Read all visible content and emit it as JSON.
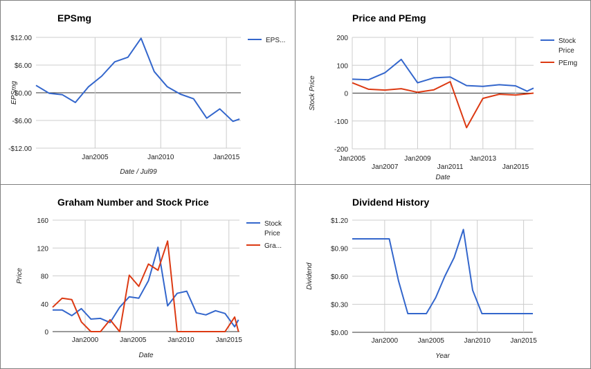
{
  "chart_data": [
    {
      "type": "line",
      "title": "EPSmg",
      "xlabel": "Date / Jul99",
      "ylabel": "EPSmg",
      "ylim": [
        -12,
        12
      ],
      "yticks": [
        12,
        6,
        0,
        -6,
        -12
      ],
      "ytick_labels": [
        "$12.00",
        "$6.00",
        "$0.00",
        "-$6.00",
        "-$12.00"
      ],
      "xlim": [
        2000.5,
        2016.1
      ],
      "xticks": [
        2005,
        2010,
        2015
      ],
      "xtick_labels": [
        "Jan2005",
        "Jan2010",
        "Jan2015"
      ],
      "grid": true,
      "legend_position": "right",
      "series": [
        {
          "name": "EPS...",
          "color": "#3366cc",
          "x": [
            2000.5,
            2001.5,
            2002.5,
            2003.5,
            2004.5,
            2005.5,
            2006.5,
            2007.5,
            2008.5,
            2009.5,
            2010.5,
            2011.5,
            2012.5,
            2013.5,
            2014.5,
            2015.5,
            2016.0
          ],
          "y": [
            1.6,
            -0.1,
            -0.4,
            -2.1,
            1.3,
            3.6,
            6.7,
            7.7,
            11.8,
            4.6,
            1.3,
            -0.3,
            -1.3,
            -5.5,
            -3.5,
            -6.2,
            -5.7
          ]
        }
      ]
    },
    {
      "type": "line",
      "title": "Price and PEmg",
      "xlabel": "Date",
      "ylabel": "Stock Price",
      "ylim": [
        -200,
        200
      ],
      "yticks": [
        200,
        100,
        0,
        -100,
        -200
      ],
      "ytick_labels": [
        "200",
        "100",
        "0",
        "-100",
        "-200"
      ],
      "xlim": [
        2005,
        2016.1
      ],
      "xticks": [
        2005,
        2007,
        2009,
        2011,
        2013,
        2015
      ],
      "xtick_labels": [
        "Jan2005",
        "Jan2007",
        "Jan2009",
        "Jan2011",
        "Jan2013",
        "Jan2015"
      ],
      "grid": true,
      "legend_position": "right",
      "series": [
        {
          "name": "Stock Price",
          "color": "#3366cc",
          "x": [
            2005.0,
            2006.0,
            2007.0,
            2008.0,
            2009.0,
            2010.0,
            2011.0,
            2012.0,
            2013.0,
            2014.0,
            2015.0,
            2015.7,
            2016.1
          ],
          "y": [
            50,
            48,
            73,
            121,
            37,
            55,
            58,
            27,
            24,
            30,
            26,
            7,
            18
          ]
        },
        {
          "name": "PEmg",
          "color": "#dc3912",
          "x": [
            2005.0,
            2006.0,
            2007.0,
            2008.0,
            2009.0,
            2010.0,
            2011.0,
            2012.0,
            2013.0,
            2014.0,
            2015.0,
            2016.1
          ],
          "y": [
            37,
            14,
            11,
            16,
            3,
            12,
            41,
            -124,
            -19,
            -4,
            -7,
            0
          ]
        }
      ]
    },
    {
      "type": "line",
      "title": "Graham Number and Stock Price",
      "xlabel": "Date",
      "ylabel": "Price",
      "ylim": [
        0,
        160
      ],
      "yticks": [
        160,
        120,
        80,
        40,
        0
      ],
      "ytick_labels": [
        "160",
        "120",
        "80",
        "40",
        "0"
      ],
      "xlim": [
        1996.6,
        2016.1
      ],
      "xticks": [
        2000,
        2005,
        2010,
        2015
      ],
      "xtick_labels": [
        "Jan2000",
        "Jan2005",
        "Jan2010",
        "Jan2015"
      ],
      "grid": true,
      "legend_position": "right",
      "series": [
        {
          "name": "Stock Price",
          "color": "#3366cc",
          "x": [
            1996.6,
            1997.6,
            1998.6,
            1999.6,
            2000.6,
            2001.6,
            2002.6,
            2003.6,
            2004.6,
            2005.6,
            2006.6,
            2007.6,
            2008.6,
            2009.6,
            2010.6,
            2011.6,
            2012.6,
            2013.6,
            2014.6,
            2015.6,
            2016.0
          ],
          "y": [
            31,
            31,
            23,
            33,
            18,
            19,
            13,
            35,
            50,
            48,
            73,
            121,
            37,
            55,
            58,
            27,
            24,
            30,
            26,
            7,
            17
          ]
        },
        {
          "name": "Gra...",
          "color": "#dc3912",
          "x": [
            1996.6,
            1997.6,
            1998.6,
            1999.6,
            2000.6,
            2001.6,
            2002.6,
            2003.6,
            2004.6,
            2005.6,
            2006.6,
            2007.6,
            2008.6,
            2009.6,
            2010.6,
            2011.6,
            2012.6,
            2013.6,
            2014.6,
            2015.6,
            2016.0
          ],
          "y": [
            35,
            48,
            46,
            14,
            0,
            0,
            17,
            0,
            81,
            65,
            97,
            88,
            130,
            0,
            0,
            0,
            0,
            0,
            0,
            21,
            0
          ]
        }
      ]
    },
    {
      "type": "line",
      "title": "Dividend History",
      "xlabel": "Year",
      "ylabel": "Dividend",
      "ylim": [
        0,
        1.2
      ],
      "yticks": [
        1.2,
        0.9,
        0.6,
        0.3,
        0
      ],
      "ytick_labels": [
        "$1.20",
        "$0.90",
        "$0.60",
        "$0.30",
        "$0.00"
      ],
      "xlim": [
        1996.5,
        2016.0
      ],
      "xticks": [
        2000,
        2005,
        2010,
        2015
      ],
      "xtick_labels": [
        "Jan2000",
        "Jan2005",
        "Jan2010",
        "Jan2015"
      ],
      "grid": true,
      "legend_position": "none",
      "series": [
        {
          "name": "",
          "color": "#3366cc",
          "x": [
            1996.5,
            1997.5,
            1998.5,
            1999.5,
            2000.5,
            2001.5,
            2002.5,
            2003.5,
            2004.5,
            2005.5,
            2006.5,
            2007.5,
            2008.5,
            2009.5,
            2010.5,
            2011.5,
            2012.5,
            2013.5,
            2014.5,
            2015.5,
            2016.0
          ],
          "y": [
            1.0,
            1.0,
            1.0,
            1.0,
            1.0,
            0.55,
            0.2,
            0.2,
            0.2,
            0.37,
            0.6,
            0.8,
            1.1,
            0.45,
            0.2,
            0.2,
            0.2,
            0.2,
            0.2,
            0.2,
            0.2
          ]
        }
      ]
    }
  ]
}
